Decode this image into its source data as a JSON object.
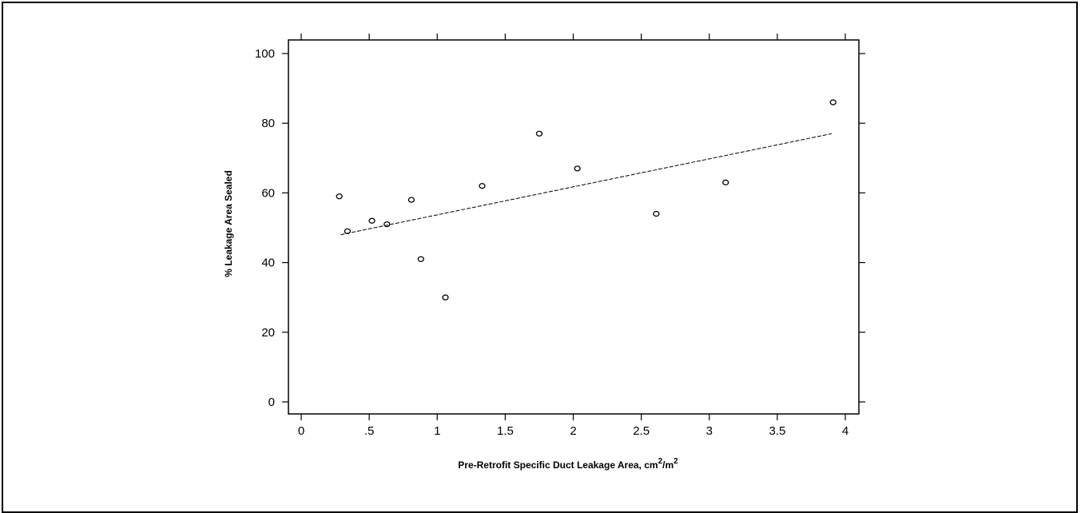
{
  "chart_data": {
    "type": "scatter",
    "xlabel": "Pre-Retrofit Specific Duct Leakage Area, cm",
    "xlabel_sup1": "2",
    "xlabel_mid": "/m",
    "xlabel_sup2": "2",
    "ylabel": "% Leakage Area Sealed",
    "xlim": [
      0,
      4
    ],
    "ylim": [
      0,
      100
    ],
    "x_ticks": [
      {
        "value": 0,
        "label": "0"
      },
      {
        "value": 0.5,
        "label": ".5"
      },
      {
        "value": 1,
        "label": "1"
      },
      {
        "value": 1.5,
        "label": "1.5"
      },
      {
        "value": 2,
        "label": "2"
      },
      {
        "value": 2.5,
        "label": "2.5"
      },
      {
        "value": 3,
        "label": "3"
      },
      {
        "value": 3.5,
        "label": "3.5"
      },
      {
        "value": 4,
        "label": "4"
      }
    ],
    "y_ticks": [
      {
        "value": 0,
        "label": "0"
      },
      {
        "value": 20,
        "label": "20"
      },
      {
        "value": 40,
        "label": "40"
      },
      {
        "value": 60,
        "label": "60"
      },
      {
        "value": 80,
        "label": "80"
      },
      {
        "value": 100,
        "label": "100"
      }
    ],
    "points": [
      {
        "x": 0.28,
        "y": 59
      },
      {
        "x": 0.34,
        "y": 49
      },
      {
        "x": 0.52,
        "y": 52
      },
      {
        "x": 0.63,
        "y": 51
      },
      {
        "x": 0.81,
        "y": 58
      },
      {
        "x": 0.88,
        "y": 41
      },
      {
        "x": 1.06,
        "y": 30
      },
      {
        "x": 1.33,
        "y": 62
      },
      {
        "x": 1.75,
        "y": 77
      },
      {
        "x": 2.03,
        "y": 67
      },
      {
        "x": 2.61,
        "y": 54
      },
      {
        "x": 3.12,
        "y": 63
      },
      {
        "x": 3.91,
        "y": 86
      }
    ],
    "trend_line": {
      "style": "dashed",
      "x": [
        0.29,
        3.9
      ],
      "y": [
        48,
        77
      ]
    },
    "grid": false,
    "legend": "none"
  }
}
